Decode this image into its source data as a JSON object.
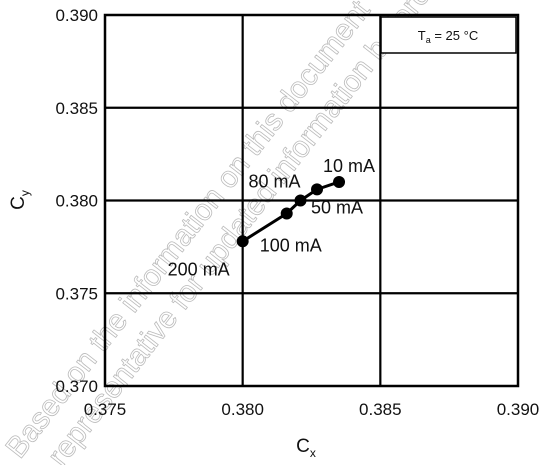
{
  "chart_data": {
    "type": "line",
    "xlabel": {
      "main": "C",
      "sub": "x"
    },
    "ylabel": {
      "main": "C",
      "sub": "y"
    },
    "xlim": [
      0.375,
      0.39
    ],
    "ylim": [
      0.37,
      0.39
    ],
    "xticks": [
      "0.375",
      "0.380",
      "0.385",
      "0.390"
    ],
    "yticks": [
      "0.370",
      "0.375",
      "0.380",
      "0.385",
      "0.390"
    ],
    "xtick_values": [
      0.375,
      0.38,
      0.385,
      0.39
    ],
    "ytick_values": [
      0.37,
      0.375,
      0.38,
      0.385,
      0.39
    ],
    "grid": true,
    "legend": {
      "main": "T",
      "sub": "a",
      "rest": " = 25 °C",
      "placement": "top-right"
    },
    "series": [
      {
        "points": [
          {
            "label": "200 mA",
            "x": 0.38,
            "y": 0.3778
          },
          {
            "label": "100 mA",
            "x": 0.3816,
            "y": 0.3793
          },
          {
            "label": "80 mA",
            "x": 0.3821,
            "y": 0.38
          },
          {
            "label": "50 mA",
            "x": 0.3827,
            "y": 0.3806
          },
          {
            "label": "10 mA",
            "x": 0.3835,
            "y": 0.381
          }
        ],
        "color": "#000000"
      }
    ],
    "watermark": [
      "Based on the information on this document",
      "representative for updated information before"
    ]
  }
}
